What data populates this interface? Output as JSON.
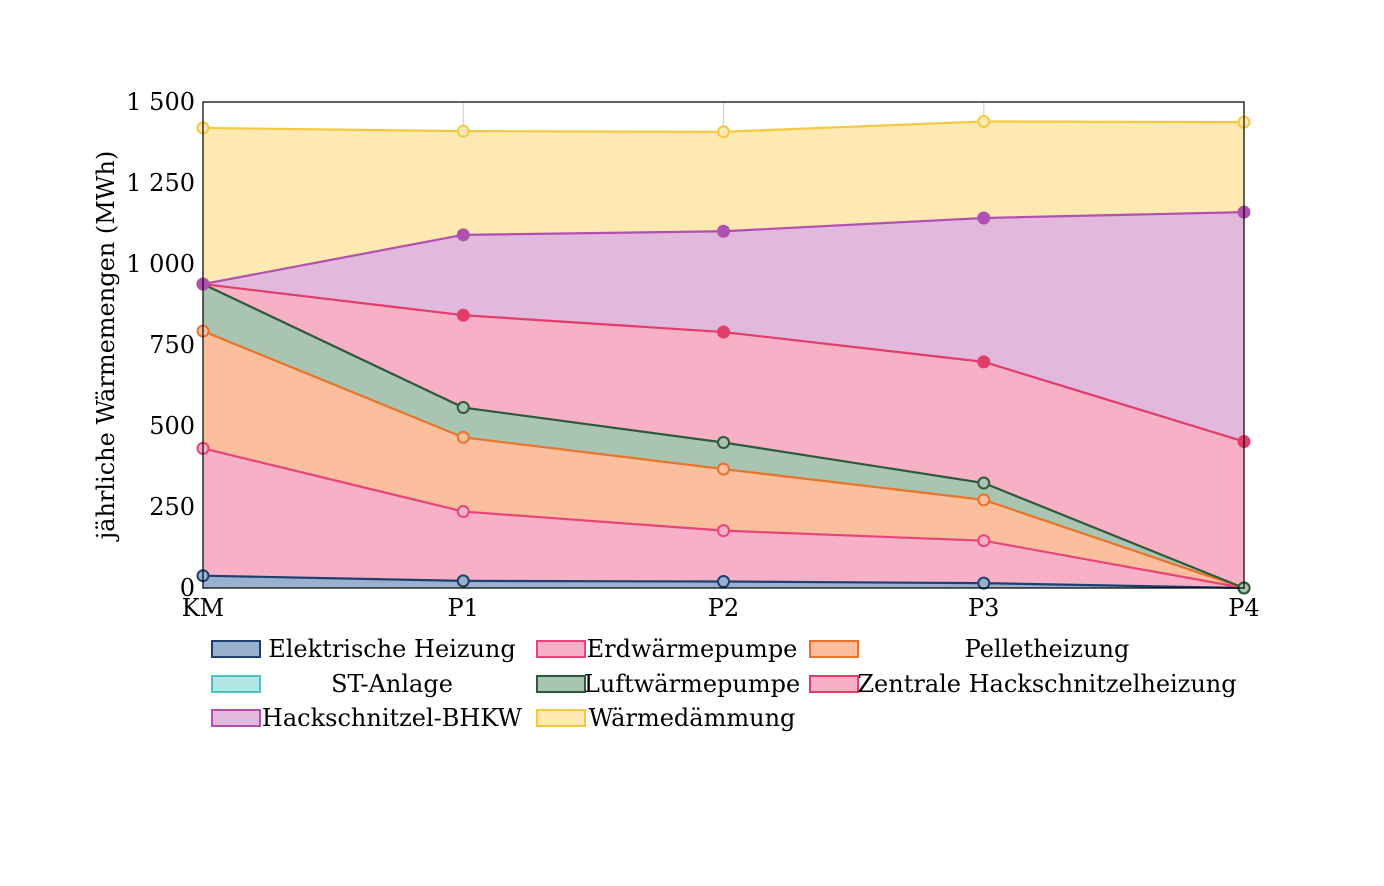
{
  "chart_data": {
    "type": "area",
    "stacked": true,
    "categories": [
      "KM",
      "P1",
      "P2",
      "P3",
      "P4"
    ],
    "ylabel": "jährliche Wärmemengen (MWh)",
    "xlabel": "",
    "ylim": [
      0,
      1500
    ],
    "yticks": [
      0,
      250,
      500,
      750,
      1000,
      1250,
      1500
    ],
    "ytick_labels": [
      "0",
      "250",
      "500",
      "750",
      "1 000",
      "1 250",
      "1 500"
    ],
    "grid": true,
    "legend_position": "bottom",
    "series": [
      {
        "name": "Elektrische Heizung",
        "values": [
          38,
          22,
          20,
          15,
          0
        ],
        "stroke": "#1f3f6e",
        "fill": "#9ab0cf",
        "marker_fill": "#9ab0cf"
      },
      {
        "name": "Erdwärmepumpe",
        "values": [
          393,
          214,
          157,
          131,
          0
        ],
        "stroke": "#e8447a",
        "fill": "#f7b0c6",
        "marker_fill": "#f7b0c6"
      },
      {
        "name": "Pelletheizung",
        "values": [
          362,
          229,
          190,
          126,
          0
        ],
        "stroke": "#e8742c",
        "fill": "#fbbf9d",
        "marker_fill": "#fbbf9d"
      },
      {
        "name": "ST-Anlage",
        "values": [
          0,
          0,
          0,
          0,
          0
        ],
        "stroke": "#4fc1bd",
        "fill": "#b0e6e4",
        "marker_fill": "#b0e6e4"
      },
      {
        "name": "Luftwärmepumpe",
        "values": [
          145,
          92,
          82,
          52,
          0
        ],
        "stroke": "#2e5a3c",
        "fill": "#a9c4b0",
        "marker_fill": "#a9c4b0"
      },
      {
        "name": "Zentrale Hackschnitzelheizung",
        "values": [
          0,
          285,
          341,
          374,
          452
        ],
        "stroke": "#e23c6a",
        "fill": "#f7b0c6",
        "marker_fill": "#e23c6a"
      },
      {
        "name": "Hackschnitzel-BHKW",
        "values": [
          0,
          248,
          311,
          444,
          708
        ],
        "stroke": "#b150b0",
        "fill": "#e2b8dc",
        "marker_fill": "#b150b0"
      },
      {
        "name": "Wärmedämmung",
        "values": [
          482,
          320,
          307,
          298,
          278
        ],
        "stroke": "#f5c842",
        "fill": "#fde9b1",
        "marker_fill": "#fde9b1"
      }
    ]
  }
}
